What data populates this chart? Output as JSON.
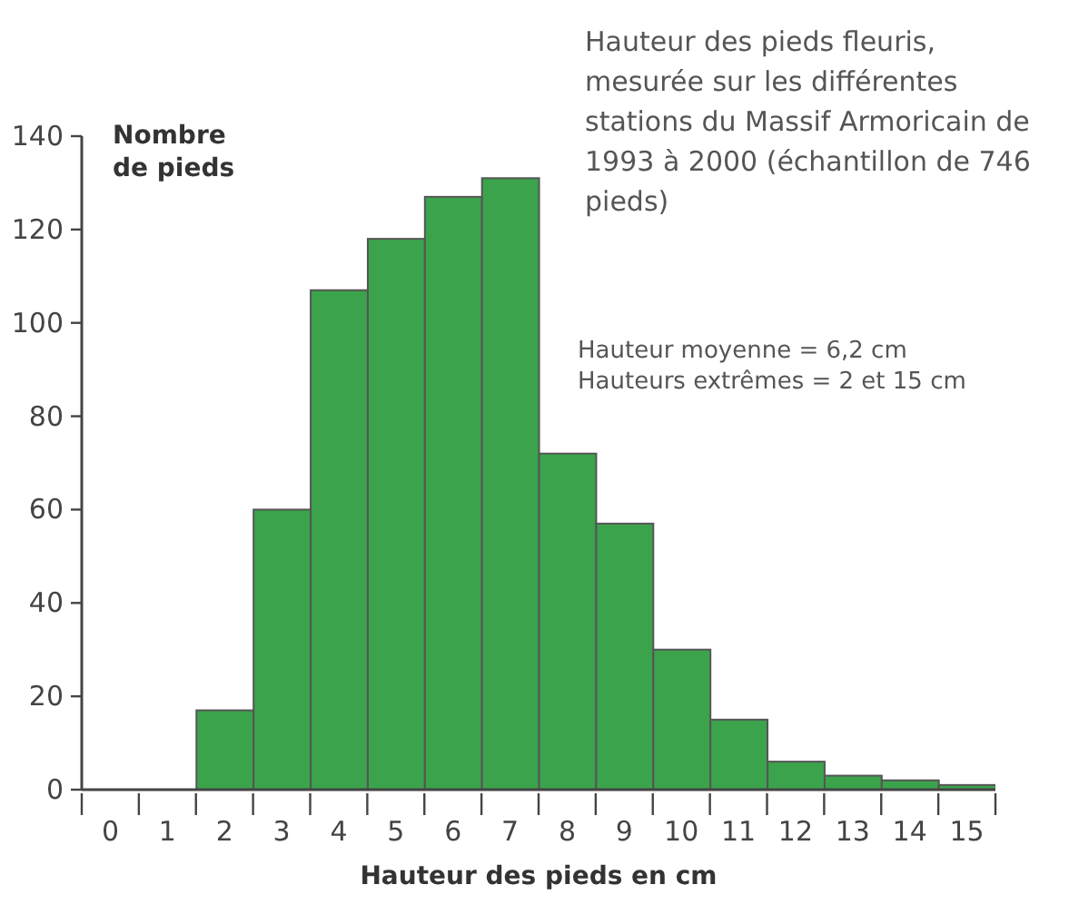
{
  "chart_data": {
    "type": "histogram",
    "title": "Hauteur des pieds fleuris, mesurée sur les différentes stations du Massif Armoricain de 1993 à 2000 (échantillon de 746 pieds)",
    "xlabel": "Hauteur des pieds en cm",
    "ylabel": "Nombre de pieds",
    "annotations": [
      "Hauteur moyenne = 6,2 cm",
      "Hauteurs extrêmes = 2 et 15 cm"
    ],
    "bins": [
      1.5,
      2.5,
      3.5,
      4.5,
      5.5,
      6.5,
      7.5,
      8.5,
      9.5,
      10.5,
      11.5,
      12.5,
      13.5,
      14.5,
      15.5
    ],
    "values": [
      17,
      60,
      107,
      118,
      127,
      131,
      72,
      57,
      30,
      15,
      6,
      3,
      2,
      1
    ],
    "color": "#3ba34c",
    "xlim": [
      -0.5,
      15.5
    ],
    "xticks": [
      {
        "value": -0.5,
        "label": null
      },
      0,
      {
        "value": 0.5,
        "label": null
      },
      1,
      {
        "value": 1.5,
        "label": null
      },
      2,
      {
        "value": 2.5,
        "label": null
      },
      3,
      {
        "value": 3.5,
        "label": null
      },
      4,
      {
        "value": 4.5,
        "label": null
      },
      5,
      {
        "value": 5.5,
        "label": null
      },
      6,
      {
        "value": 6.5,
        "label": null
      },
      7,
      {
        "value": 7.5,
        "label": null
      },
      8,
      {
        "value": 8.5,
        "label": null
      },
      9,
      {
        "value": 9.5,
        "label": null
      },
      10,
      {
        "value": 10.5,
        "label": null
      },
      11,
      {
        "value": 11.5,
        "label": null
      },
      12,
      {
        "value": 12.5,
        "label": null
      },
      13,
      {
        "value": 13.5,
        "label": null
      },
      14,
      {
        "value": 14.5,
        "label": null
      },
      15,
      {
        "value": 15.5,
        "label": null
      }
    ],
    "ylim": [
      0,
      140
    ],
    "yticks": [
      0,
      20,
      40,
      60,
      80,
      100,
      120,
      140
    ],
    "grid": false,
    "legend": false
  }
}
